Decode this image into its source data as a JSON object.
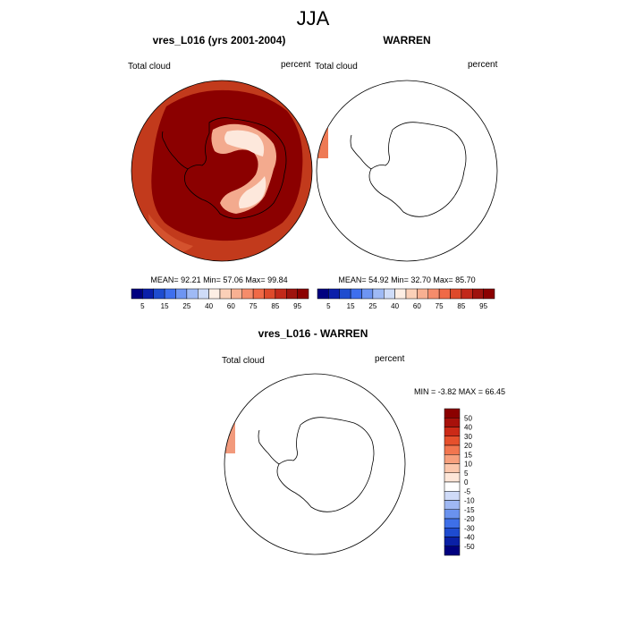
{
  "title": "JJA",
  "panels": [
    {
      "title": "vres_L016 (yrs 2001-2004)",
      "var_label": "Total cloud",
      "units": "percent",
      "stats": "MEAN=  92.21  Min=  57.06  Max=  99.84"
    },
    {
      "title": "WARREN",
      "var_label": "Total cloud",
      "units": "percent",
      "stats": "MEAN=  54.92  Min=  32.70  Max=  85.70"
    },
    {
      "title": "vres_L016 - WARREN",
      "var_label": "Total cloud",
      "units": "percent",
      "stats": "MIN =  -3.82 MAX =  66.45"
    }
  ],
  "colors": {
    "abs_scale": [
      "#000080",
      "#0a1faa",
      "#1e4ccf",
      "#3e6fee",
      "#6e95f2",
      "#9fbaf5",
      "#cfdcf8",
      "#fdeee4",
      "#fbd0b8",
      "#f8b092",
      "#f58c6b",
      "#f06a47",
      "#de4a2b",
      "#c2291a",
      "#9e130e",
      "#8b0000"
    ],
    "diff_scale": [
      "#00007f",
      "#0a20a6",
      "#1e4bd0",
      "#3e6fe8",
      "#6a92ee",
      "#9fb8f3",
      "#cfdbf8",
      "#ffffff",
      "#fde6d8",
      "#fbc7ac",
      "#f7a07d",
      "#f2764f",
      "#e6502c",
      "#cc2a17",
      "#a8110b",
      "#8b0000"
    ],
    "ocean_fill": "#c0391b",
    "ocean_dark": "#8b0000"
  },
  "chart_data": [
    {
      "type": "heatmap",
      "title": "vres_L016 (yrs 2001-2004)",
      "variable": "Total cloud",
      "units": "percent",
      "projection": "south polar stereographic",
      "stats": {
        "mean": 92.21,
        "min": 57.06,
        "max": 99.84
      },
      "colorbar": {
        "labels": [
          "5",
          "15",
          "25",
          "40",
          "60",
          "75",
          "85",
          "95"
        ],
        "levels": [
          5,
          10,
          15,
          20,
          25,
          30,
          35,
          40,
          50,
          60,
          65,
          70,
          75,
          80,
          85,
          90,
          95
        ]
      }
    },
    {
      "type": "heatmap",
      "title": "WARREN",
      "variable": "Total cloud",
      "units": "percent",
      "projection": "south polar stereographic",
      "stats": {
        "mean": 54.92,
        "min": 32.7,
        "max": 85.7
      },
      "colorbar": {
        "labels": [
          "5",
          "15",
          "25",
          "40",
          "60",
          "75",
          "85",
          "95"
        ],
        "levels": [
          5,
          10,
          15,
          20,
          25,
          30,
          35,
          40,
          50,
          60,
          65,
          70,
          75,
          80,
          85,
          90,
          95
        ]
      }
    },
    {
      "type": "heatmap",
      "title": "vres_L016 - WARREN",
      "variable": "Total cloud",
      "units": "percent",
      "projection": "south polar stereographic",
      "stats": {
        "min": -3.82,
        "max": 66.45
      },
      "colorbar": {
        "labels": [
          "50",
          "40",
          "30",
          "20",
          "15",
          "10",
          "5",
          "0",
          "-5",
          "-10",
          "-15",
          "-20",
          "-30",
          "-40",
          "-50"
        ],
        "levels": [
          50,
          40,
          30,
          20,
          15,
          10,
          5,
          0,
          -5,
          -10,
          -15,
          -20,
          -30,
          -40,
          -50
        ]
      }
    }
  ]
}
